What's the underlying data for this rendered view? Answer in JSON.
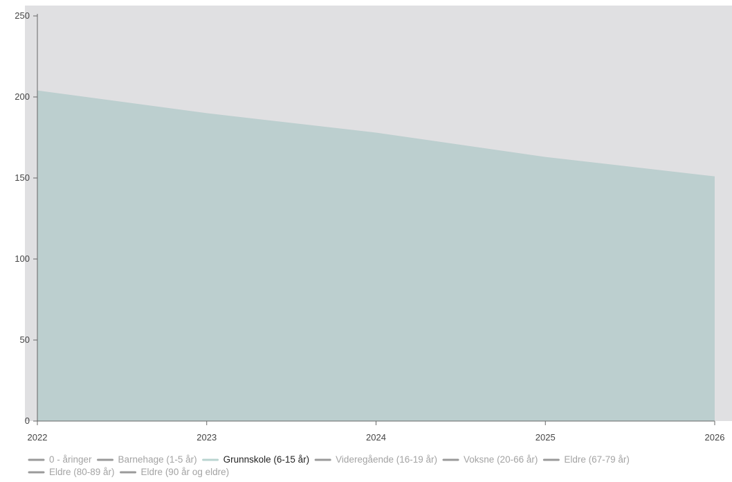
{
  "chart_data": {
    "type": "area",
    "title": "",
    "xlabel": "",
    "ylabel": "",
    "x": [
      "2022",
      "2023",
      "2024",
      "2025",
      "2026"
    ],
    "ylim": [
      0,
      250
    ],
    "yticks": [
      0,
      50,
      100,
      150,
      200,
      250
    ],
    "grid": false,
    "legend_position": "bottom-left",
    "series": [
      {
        "name": "Grunnskole (6-15 år)",
        "values": [
          204,
          190,
          178,
          163,
          151
        ],
        "active": true
      }
    ],
    "legend": [
      {
        "label": "0 - åringer",
        "active": false
      },
      {
        "label": "Barnehage (1-5 år)",
        "active": false
      },
      {
        "label": "Grunnskole (6-15 år)",
        "active": true
      },
      {
        "label": "Videregående (16-19 år)",
        "active": false
      },
      {
        "label": "Voksne (20-66 år)",
        "active": false
      },
      {
        "label": "Eldre (67-79 år)",
        "active": false
      },
      {
        "label": "Eldre (80-89 år)",
        "active": false
      },
      {
        "label": "Eldre (90 år og eldre)",
        "active": false
      }
    ]
  },
  "colors": {
    "plot_background": "#e0e0e2",
    "area_fill": "#bccfcf",
    "active_legend_line": "#b9d4d0",
    "inactive_legend_line": "#9a9a9a",
    "active_legend_text": "#222222",
    "inactive_legend_text": "#a3a3a3",
    "axis": "#666666"
  }
}
